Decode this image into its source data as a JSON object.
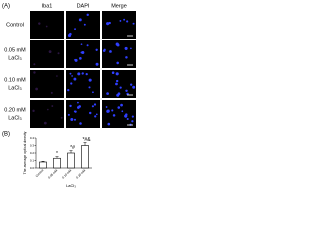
{
  "panel_a": {
    "label": "(A)",
    "columns": [
      "Iba1",
      "DAPI",
      "Merge"
    ],
    "rows": [
      [
        "Control"
      ],
      [
        "0.05 mM",
        "LaCl₃"
      ],
      [
        "0.10 mM",
        "LaCl₃"
      ],
      [
        "0.20 mM",
        "LaCl₃"
      ]
    ]
  },
  "chart_data": {
    "type": "bar",
    "panel_label": "(B)",
    "y_label": "The average optical density",
    "x_label": "LaCl₃",
    "categories": [
      "Control",
      "0.05 mM",
      "0.10 mM",
      "0.20 mM"
    ],
    "values": [
      0.08,
      0.13,
      0.2,
      0.3
    ],
    "errors": [
      0.01,
      0.02,
      0.03,
      0.04
    ],
    "color": "#ffffff",
    "annotations": [
      {
        "category": "0.05 mM",
        "text": "*"
      },
      {
        "category": "0.10 mM",
        "text": "*#"
      },
      {
        "category": "0.20 mM",
        "text": "*#&"
      }
    ],
    "ylim": [
      0,
      0.4
    ],
    "yticks": [
      {
        "value": 0,
        "label": "0.0"
      },
      {
        "value": 0.1,
        "label": "0.1"
      },
      {
        "value": 0.2,
        "label": "0.2"
      },
      {
        "value": 0.3,
        "label": "0.3"
      },
      {
        "value": 0.4,
        "label": "0.4"
      }
    ]
  }
}
